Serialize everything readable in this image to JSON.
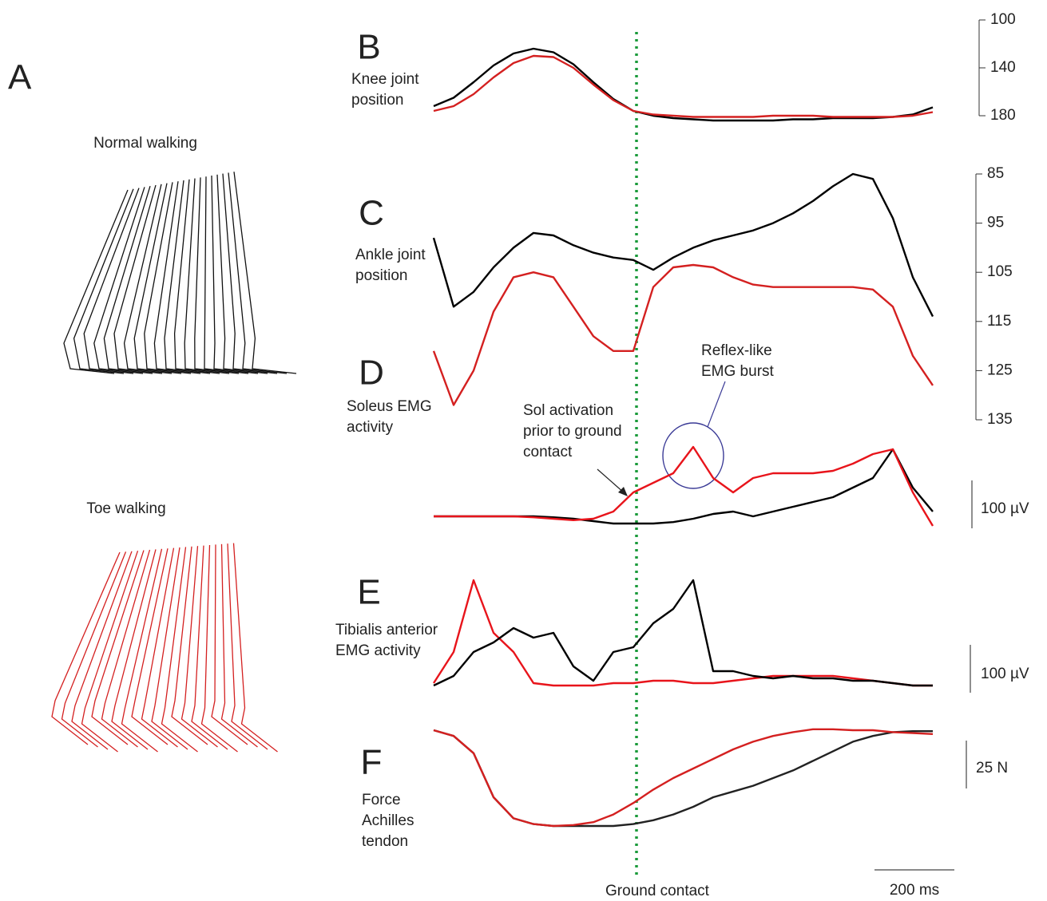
{
  "panel_a": {
    "label": "A",
    "normal": "Normal walking",
    "toe": "Toe walking"
  },
  "time_axis": {
    "xlim": [
      0,
      1250
    ],
    "ground_contact": {
      "value": 508,
      "label": "Ground contact"
    },
    "scale_bar": {
      "value": 200,
      "label": "200 ms"
    }
  },
  "chart_data": [
    {
      "type": "line",
      "panel": "B",
      "title": [
        "Knee joint",
        "position"
      ],
      "x": [
        0,
        50,
        100,
        150,
        200,
        250,
        300,
        350,
        400,
        450,
        500,
        550,
        600,
        650,
        700,
        750,
        800,
        850,
        900,
        950,
        1000,
        1050,
        1100,
        1150,
        1200,
        1250
      ],
      "ylim": [
        100,
        180
      ],
      "y_inverted": true,
      "yticks": [
        100,
        140,
        180
      ],
      "series": [
        {
          "color": "#000000",
          "values": [
            172,
            165,
            152,
            138,
            128,
            124,
            127,
            137,
            152,
            166,
            176,
            180,
            182,
            183,
            184,
            184,
            184,
            184,
            183,
            183,
            182,
            182,
            182,
            181,
            179,
            173
          ]
        },
        {
          "color": "#d42020",
          "values": [
            176,
            172,
            162,
            148,
            136,
            130,
            131,
            140,
            154,
            167,
            176,
            179,
            180,
            181,
            181,
            181,
            181,
            180,
            180,
            180,
            181,
            181,
            181,
            181,
            180,
            177
          ]
        }
      ]
    },
    {
      "type": "line",
      "panel": "C",
      "title": [
        "Ankle joint",
        "position"
      ],
      "x": [
        0,
        50,
        100,
        150,
        200,
        250,
        300,
        350,
        400,
        450,
        500,
        550,
        600,
        650,
        700,
        750,
        800,
        850,
        900,
        950,
        1000,
        1050,
        1100,
        1150,
        1200,
        1250
      ],
      "ylim": [
        85,
        135
      ],
      "y_inverted": true,
      "yticks": [
        85,
        95,
        105,
        115,
        125,
        135
      ],
      "series": [
        {
          "color": "#000000",
          "values": [
            98,
            112,
            109,
            104,
            100,
            97,
            97.5,
            99.5,
            101,
            102,
            102.5,
            104.5,
            102,
            100,
            98.5,
            97.5,
            96.5,
            95,
            93,
            90.5,
            87.5,
            85,
            86,
            94,
            106,
            114
          ]
        },
        {
          "color": "#d42020",
          "values": [
            121,
            132,
            125,
            113,
            106,
            105,
            106,
            112,
            118,
            121,
            121,
            108,
            104,
            103.5,
            104,
            106,
            107.5,
            108,
            108,
            108,
            108,
            108,
            108.5,
            112,
            122,
            128
          ]
        }
      ]
    },
    {
      "type": "line",
      "panel": "D",
      "title": [
        "Soleus EMG",
        "activity"
      ],
      "x": [
        0,
        50,
        100,
        150,
        200,
        250,
        300,
        350,
        400,
        450,
        500,
        550,
        600,
        650,
        700,
        750,
        800,
        850,
        900,
        950,
        1000,
        1050,
        1100,
        1150,
        1200,
        1250
      ],
      "scale_bar": {
        "value": 100,
        "label": "100 µV"
      },
      "annotations": [
        {
          "lines": [
            "Sol activation",
            "prior to ground",
            "contact"
          ],
          "color": "#3a3a96"
        },
        {
          "lines": [
            "Reflex-like",
            "EMG burst"
          ],
          "color": "#3a3a96"
        }
      ],
      "series": [
        {
          "color": "#000000",
          "values": [
            30,
            30,
            30,
            30,
            30,
            30,
            28,
            25,
            20,
            15,
            15,
            15,
            18,
            25,
            35,
            40,
            30,
            40,
            50,
            60,
            70,
            90,
            110,
            170,
            90,
            40
          ]
        },
        {
          "color": "#e8141b",
          "values": [
            30,
            30,
            30,
            30,
            30,
            28,
            25,
            22,
            25,
            40,
            80,
            100,
            120,
            175,
            110,
            80,
            110,
            120,
            120,
            120,
            125,
            140,
            160,
            170,
            80,
            10
          ]
        }
      ]
    },
    {
      "type": "line",
      "panel": "E",
      "title": [
        "Tibialis anterior",
        "EMG activity"
      ],
      "x": [
        0,
        50,
        100,
        150,
        200,
        250,
        300,
        350,
        400,
        450,
        500,
        550,
        600,
        650,
        700,
        750,
        800,
        850,
        900,
        950,
        1000,
        1050,
        1100,
        1150,
        1200,
        1250
      ],
      "scale_bar": {
        "value": 100,
        "label": "100 µV"
      },
      "series": [
        {
          "color": "#e8141b",
          "values": [
            15,
            80,
            230,
            120,
            80,
            15,
            10,
            10,
            10,
            15,
            15,
            20,
            20,
            15,
            15,
            20,
            25,
            30,
            30,
            30,
            30,
            25,
            20,
            15,
            10,
            10
          ]
        },
        {
          "color": "#000000",
          "values": [
            10,
            30,
            80,
            100,
            130,
            110,
            120,
            50,
            20,
            80,
            90,
            140,
            170,
            230,
            40,
            40,
            30,
            25,
            30,
            25,
            25,
            20,
            20,
            15,
            10,
            10
          ]
        }
      ]
    },
    {
      "type": "line",
      "panel": "F",
      "title": [
        "Force",
        "Achilles",
        "tendon"
      ],
      "x": [
        0,
        50,
        100,
        150,
        200,
        250,
        300,
        350,
        400,
        450,
        500,
        550,
        600,
        650,
        700,
        750,
        800,
        850,
        900,
        950,
        1000,
        1050,
        1100,
        1150,
        1200,
        1250
      ],
      "scale_bar": {
        "value": 25,
        "label": "25 N"
      },
      "series": [
        {
          "color": "#222222",
          "values": [
            0,
            -3,
            -12,
            -35,
            -46,
            -49,
            -50,
            -50,
            -50,
            -50,
            -49,
            -47,
            -44,
            -40,
            -35,
            -32,
            -29,
            -25,
            -21,
            -16,
            -11,
            -6,
            -3,
            -1,
            -0.5,
            -0.5
          ]
        },
        {
          "color": "#d42020",
          "values": [
            0,
            -3,
            -12,
            -35,
            -46,
            -49,
            -50,
            -49.5,
            -48,
            -44,
            -38,
            -31,
            -25,
            -20,
            -15,
            -10,
            -6,
            -3,
            -1,
            0.5,
            0.5,
            0,
            0,
            -1,
            -1.5,
            -2
          ]
        }
      ]
    }
  ]
}
